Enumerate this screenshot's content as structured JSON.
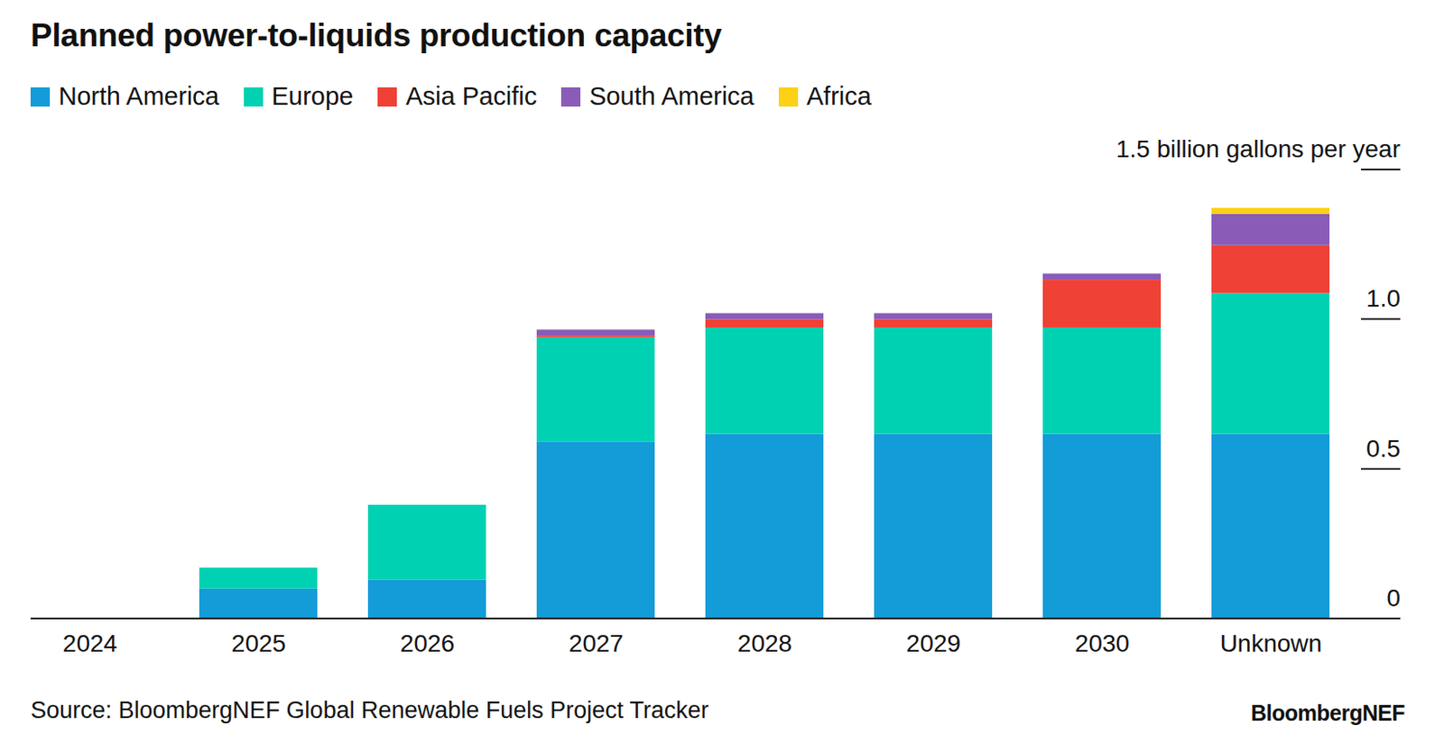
{
  "chart_data": {
    "type": "bar",
    "title": "Planned power-to-liquids production capacity",
    "categories": [
      "2024",
      "2025",
      "2026",
      "2027",
      "2028",
      "2029",
      "2030",
      "Unknown"
    ],
    "series": [
      {
        "name": "North America",
        "color": "#139cd8",
        "values": [
          0,
          0.1,
          0.13,
          0.59,
          0.617,
          0.617,
          0.617,
          0.617
        ]
      },
      {
        "name": "Europe",
        "color": "#00d1b2",
        "values": [
          0,
          0.07,
          0.25,
          0.35,
          0.355,
          0.355,
          0.355,
          0.47
        ]
      },
      {
        "name": "Asia Pacific",
        "color": "#ef4136",
        "values": [
          0,
          0,
          0,
          0.005,
          0.028,
          0.028,
          0.16,
          0.16
        ]
      },
      {
        "name": "South America",
        "color": "#8a5cb8",
        "values": [
          0,
          0,
          0,
          0.02,
          0.02,
          0.02,
          0.02,
          0.105
        ]
      },
      {
        "name": "Africa",
        "color": "#fcd116",
        "values": [
          0,
          0,
          0,
          0,
          0,
          0,
          0,
          0.02
        ]
      }
    ],
    "stacked": true,
    "legend": "top",
    "ylim": [
      0,
      1.5
    ],
    "yticks": [
      0,
      0.5,
      {
        "value": 1,
        "label": "1.0"
      },
      {
        "value": 1.5,
        "label": "1.5 billion gallons per year"
      }
    ],
    "source": "Source: BloombergNEF Global Renewable Fuels Project Tracker",
    "credit": "BloombergNEF"
  }
}
